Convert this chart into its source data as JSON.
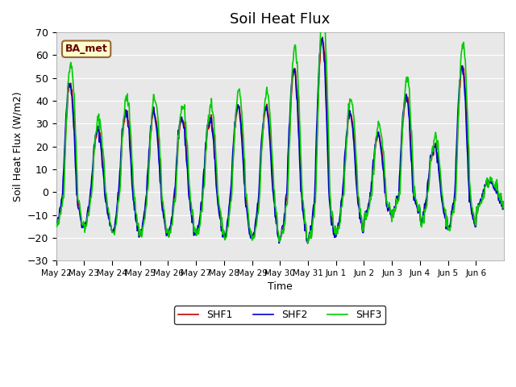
{
  "title": "Soil Heat Flux",
  "ylabel": "Soil Heat Flux (W/m2)",
  "xlabel": "Time",
  "ylim": [
    -30,
    70
  ],
  "colors": {
    "SHF1": "#cc0000",
    "SHF2": "#0000cc",
    "SHF3": "#00cc00"
  },
  "legend_label": "BA_met",
  "background_color": "#e8e8e8",
  "linewidth": 1.2,
  "x_tick_labels": [
    "May 22",
    "May 23",
    "May 24",
    "May 25",
    "May 26",
    "May 27",
    "May 28",
    "May 29",
    "May 30",
    "May 31",
    "Jun 1",
    "Jun 2",
    "Jun 3",
    "Jun 4",
    "Jun 5",
    "Jun 6"
  ],
  "yticks": [
    -30,
    -20,
    -10,
    0,
    10,
    20,
    30,
    40,
    50,
    60,
    70
  ]
}
